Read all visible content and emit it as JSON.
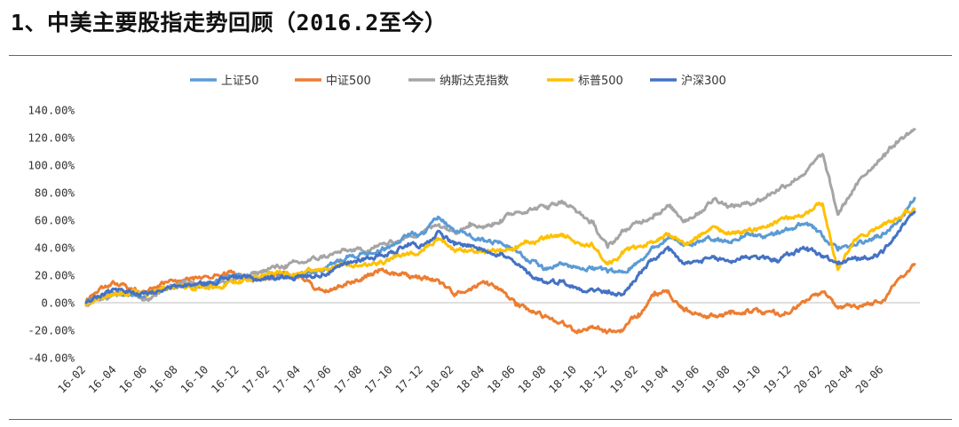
{
  "page": {
    "title": "1、中美主要股指走势回顾（2016.2至今）"
  },
  "chart_data": {
    "type": "line",
    "title": "",
    "xlabel": "",
    "ylabel": "",
    "x_tick_labels": [
      "16-02",
      "16-04",
      "16-06",
      "16-08",
      "16-10",
      "16-12",
      "17-02",
      "17-04",
      "17-06",
      "17-08",
      "17-10",
      "17-12",
      "18-02",
      "18-04",
      "18-06",
      "18-08",
      "18-10",
      "18-12",
      "19-02",
      "19-04",
      "19-06",
      "19-08",
      "19-10",
      "19-12",
      "20-02",
      "20-04",
      "20-06"
    ],
    "x_range": [
      "2016-02",
      "2020-08"
    ],
    "y_tick_labels": [
      "140.00%",
      "120.00%",
      "100.00%",
      "80.00%",
      "60.00%",
      "40.00%",
      "20.00%",
      "0.00%",
      "-20.00%",
      "-40.00%"
    ],
    "ylim": [
      -40,
      140
    ],
    "y_unit": "%",
    "grid": false,
    "legend_position": "top-center",
    "series": [
      {
        "name": "上证50",
        "color": "#5B9BD5",
        "points": [
          [
            "2016-02-01",
            0
          ],
          [
            "2016-03-01",
            5
          ],
          [
            "2016-04-01",
            8
          ],
          [
            "2016-05-01",
            5
          ],
          [
            "2016-06-01",
            6
          ],
          [
            "2016-07-01",
            9
          ],
          [
            "2016-08-01",
            12
          ],
          [
            "2016-09-01",
            13
          ],
          [
            "2016-10-01",
            14
          ],
          [
            "2016-11-01",
            18
          ],
          [
            "2016-12-01",
            20
          ],
          [
            "2017-01-01",
            17
          ],
          [
            "2017-02-01",
            18
          ],
          [
            "2017-03-01",
            19
          ],
          [
            "2017-04-01",
            20
          ],
          [
            "2017-05-01",
            22
          ],
          [
            "2017-06-01",
            28
          ],
          [
            "2017-07-01",
            34
          ],
          [
            "2017-08-01",
            36
          ],
          [
            "2017-09-01",
            38
          ],
          [
            "2017-10-01",
            42
          ],
          [
            "2017-11-01",
            50
          ],
          [
            "2017-12-01",
            50
          ],
          [
            "2018-01-01",
            62
          ],
          [
            "2018-02-01",
            52
          ],
          [
            "2018-03-01",
            50
          ],
          [
            "2018-04-01",
            45
          ],
          [
            "2018-05-01",
            44
          ],
          [
            "2018-06-01",
            38
          ],
          [
            "2018-07-01",
            30
          ],
          [
            "2018-08-01",
            24
          ],
          [
            "2018-09-01",
            28
          ],
          [
            "2018-10-01",
            26
          ],
          [
            "2018-11-01",
            26
          ],
          [
            "2018-12-01",
            22
          ],
          [
            "2019-01-01",
            22
          ],
          [
            "2019-02-01",
            30
          ],
          [
            "2019-03-01",
            40
          ],
          [
            "2019-04-01",
            48
          ],
          [
            "2019-05-01",
            42
          ],
          [
            "2019-06-01",
            45
          ],
          [
            "2019-07-01",
            46
          ],
          [
            "2019-08-01",
            44
          ],
          [
            "2019-09-01",
            50
          ],
          [
            "2019-10-01",
            48
          ],
          [
            "2019-11-01",
            50
          ],
          [
            "2019-12-01",
            54
          ],
          [
            "2020-01-01",
            58
          ],
          [
            "2020-02-01",
            48
          ],
          [
            "2020-03-01",
            38
          ],
          [
            "2020-04-01",
            42
          ],
          [
            "2020-05-01",
            45
          ],
          [
            "2020-06-01",
            50
          ],
          [
            "2020-07-01",
            60
          ],
          [
            "2020-08-01",
            76
          ]
        ]
      },
      {
        "name": "中证500",
        "color": "#ED7D31",
        "points": [
          [
            "2016-02-01",
            0
          ],
          [
            "2016-03-01",
            12
          ],
          [
            "2016-04-01",
            14
          ],
          [
            "2016-05-01",
            10
          ],
          [
            "2016-06-01",
            8
          ],
          [
            "2016-07-01",
            14
          ],
          [
            "2016-08-01",
            16
          ],
          [
            "2016-09-01",
            17
          ],
          [
            "2016-10-01",
            18
          ],
          [
            "2016-11-01",
            22
          ],
          [
            "2016-12-01",
            20
          ],
          [
            "2017-01-01",
            17
          ],
          [
            "2017-02-01",
            18
          ],
          [
            "2017-03-01",
            20
          ],
          [
            "2017-04-01",
            19
          ],
          [
            "2017-05-01",
            10
          ],
          [
            "2017-06-01",
            9
          ],
          [
            "2017-07-01",
            15
          ],
          [
            "2017-08-01",
            18
          ],
          [
            "2017-09-01",
            22
          ],
          [
            "2017-10-01",
            22
          ],
          [
            "2017-11-01",
            20
          ],
          [
            "2017-12-01",
            18
          ],
          [
            "2018-01-01",
            16
          ],
          [
            "2018-02-01",
            5
          ],
          [
            "2018-03-01",
            10
          ],
          [
            "2018-04-01",
            14
          ],
          [
            "2018-05-01",
            10
          ],
          [
            "2018-06-01",
            -2
          ],
          [
            "2018-07-01",
            -6
          ],
          [
            "2018-08-01",
            -10
          ],
          [
            "2018-09-01",
            -14
          ],
          [
            "2018-10-01",
            -22
          ],
          [
            "2018-11-01",
            -17
          ],
          [
            "2018-12-01",
            -21
          ],
          [
            "2019-01-01",
            -20
          ],
          [
            "2019-02-01",
            -8
          ],
          [
            "2019-03-01",
            5
          ],
          [
            "2019-04-01",
            7
          ],
          [
            "2019-05-01",
            -6
          ],
          [
            "2019-06-01",
            -8
          ],
          [
            "2019-07-01",
            -10
          ],
          [
            "2019-08-01",
            -8
          ],
          [
            "2019-09-01",
            -6
          ],
          [
            "2019-10-01",
            -7
          ],
          [
            "2019-11-01",
            -8
          ],
          [
            "2019-12-01",
            -6
          ],
          [
            "2020-01-01",
            2
          ],
          [
            "2020-02-01",
            8
          ],
          [
            "2020-03-01",
            -4
          ],
          [
            "2020-04-01",
            -2
          ],
          [
            "2020-05-01",
            -1
          ],
          [
            "2020-06-01",
            2
          ],
          [
            "2020-07-01",
            18
          ],
          [
            "2020-08-01",
            28
          ]
        ]
      },
      {
        "name": "纳斯达克指数",
        "color": "#A5A5A5",
        "points": [
          [
            "2016-02-01",
            -2
          ],
          [
            "2016-03-01",
            3
          ],
          [
            "2016-04-01",
            5
          ],
          [
            "2016-05-01",
            6
          ],
          [
            "2016-06-01",
            2
          ],
          [
            "2016-07-01",
            10
          ],
          [
            "2016-08-01",
            14
          ],
          [
            "2016-09-01",
            15
          ],
          [
            "2016-10-01",
            14
          ],
          [
            "2016-11-01",
            15
          ],
          [
            "2016-12-01",
            18
          ],
          [
            "2017-01-01",
            21
          ],
          [
            "2017-02-01",
            25
          ],
          [
            "2017-03-01",
            27
          ],
          [
            "2017-04-01",
            29
          ],
          [
            "2017-05-01",
            32
          ],
          [
            "2017-06-01",
            35
          ],
          [
            "2017-07-01",
            38
          ],
          [
            "2017-08-01",
            38
          ],
          [
            "2017-09-01",
            41
          ],
          [
            "2017-10-01",
            44
          ],
          [
            "2017-11-01",
            48
          ],
          [
            "2017-12-01",
            52
          ],
          [
            "2018-01-01",
            57
          ],
          [
            "2018-02-01",
            52
          ],
          [
            "2018-03-01",
            58
          ],
          [
            "2018-04-01",
            55
          ],
          [
            "2018-05-01",
            60
          ],
          [
            "2018-06-01",
            66
          ],
          [
            "2018-07-01",
            68
          ],
          [
            "2018-08-01",
            70
          ],
          [
            "2018-09-01",
            74
          ],
          [
            "2018-10-01",
            66
          ],
          [
            "2018-11-01",
            58
          ],
          [
            "2018-12-01",
            40
          ],
          [
            "2019-01-01",
            52
          ],
          [
            "2019-02-01",
            58
          ],
          [
            "2019-03-01",
            64
          ],
          [
            "2019-04-01",
            70
          ],
          [
            "2019-05-01",
            60
          ],
          [
            "2019-06-01",
            66
          ],
          [
            "2019-07-01",
            76
          ],
          [
            "2019-08-01",
            70
          ],
          [
            "2019-09-01",
            72
          ],
          [
            "2019-10-01",
            75
          ],
          [
            "2019-11-01",
            82
          ],
          [
            "2019-12-01",
            88
          ],
          [
            "2020-01-01",
            96
          ],
          [
            "2020-02-01",
            108
          ],
          [
            "2020-03-01",
            64
          ],
          [
            "2020-04-01",
            82
          ],
          [
            "2020-05-01",
            96
          ],
          [
            "2020-06-01",
            108
          ],
          [
            "2020-07-01",
            118
          ],
          [
            "2020-08-01",
            126
          ]
        ]
      },
      {
        "name": "标普500",
        "color": "#FFC000",
        "points": [
          [
            "2016-02-01",
            -1
          ],
          [
            "2016-03-01",
            4
          ],
          [
            "2016-04-01",
            6
          ],
          [
            "2016-05-01",
            7
          ],
          [
            "2016-06-01",
            5
          ],
          [
            "2016-07-01",
            11
          ],
          [
            "2016-08-01",
            12
          ],
          [
            "2016-09-01",
            11
          ],
          [
            "2016-10-01",
            10
          ],
          [
            "2016-11-01",
            13
          ],
          [
            "2016-12-01",
            16
          ],
          [
            "2017-01-01",
            18
          ],
          [
            "2017-02-01",
            21
          ],
          [
            "2017-03-01",
            22
          ],
          [
            "2017-04-01",
            22
          ],
          [
            "2017-05-01",
            24
          ],
          [
            "2017-06-01",
            25
          ],
          [
            "2017-07-01",
            27
          ],
          [
            "2017-08-01",
            27
          ],
          [
            "2017-09-01",
            29
          ],
          [
            "2017-10-01",
            32
          ],
          [
            "2017-11-01",
            35
          ],
          [
            "2017-12-01",
            38
          ],
          [
            "2018-01-01",
            46
          ],
          [
            "2018-02-01",
            38
          ],
          [
            "2018-03-01",
            38
          ],
          [
            "2018-04-01",
            36
          ],
          [
            "2018-05-01",
            39
          ],
          [
            "2018-06-01",
            41
          ],
          [
            "2018-07-01",
            44
          ],
          [
            "2018-08-01",
            47
          ],
          [
            "2018-09-01",
            50
          ],
          [
            "2018-10-01",
            44
          ],
          [
            "2018-11-01",
            42
          ],
          [
            "2018-12-01",
            28
          ],
          [
            "2019-01-01",
            36
          ],
          [
            "2019-02-01",
            41
          ],
          [
            "2019-03-01",
            44
          ],
          [
            "2019-04-01",
            50
          ],
          [
            "2019-05-01",
            42
          ],
          [
            "2019-06-01",
            48
          ],
          [
            "2019-07-01",
            55
          ],
          [
            "2019-08-01",
            50
          ],
          [
            "2019-09-01",
            52
          ],
          [
            "2019-10-01",
            54
          ],
          [
            "2019-11-01",
            58
          ],
          [
            "2019-12-01",
            62
          ],
          [
            "2020-01-01",
            66
          ],
          [
            "2020-02-01",
            72
          ],
          [
            "2020-03-01",
            24
          ],
          [
            "2020-04-01",
            44
          ],
          [
            "2020-05-01",
            50
          ],
          [
            "2020-06-01",
            58
          ],
          [
            "2020-07-01",
            62
          ],
          [
            "2020-08-01",
            68
          ]
        ]
      },
      {
        "name": "沪深300",
        "color": "#4472C4",
        "points": [
          [
            "2016-02-01",
            0
          ],
          [
            "2016-03-01",
            6
          ],
          [
            "2016-04-01",
            9
          ],
          [
            "2016-05-01",
            7
          ],
          [
            "2016-06-01",
            6
          ],
          [
            "2016-07-01",
            9
          ],
          [
            "2016-08-01",
            12
          ],
          [
            "2016-09-01",
            13
          ],
          [
            "2016-10-01",
            14
          ],
          [
            "2016-11-01",
            18
          ],
          [
            "2016-12-01",
            19
          ],
          [
            "2017-01-01",
            17
          ],
          [
            "2017-02-01",
            18
          ],
          [
            "2017-03-01",
            19
          ],
          [
            "2017-04-01",
            19
          ],
          [
            "2017-05-01",
            20
          ],
          [
            "2017-06-01",
            23
          ],
          [
            "2017-07-01",
            28
          ],
          [
            "2017-08-01",
            32
          ],
          [
            "2017-09-01",
            34
          ],
          [
            "2017-10-01",
            37
          ],
          [
            "2017-11-01",
            43
          ],
          [
            "2017-12-01",
            42
          ],
          [
            "2018-01-01",
            52
          ],
          [
            "2018-02-01",
            42
          ],
          [
            "2018-03-01",
            42
          ],
          [
            "2018-04-01",
            38
          ],
          [
            "2018-05-01",
            36
          ],
          [
            "2018-06-01",
            28
          ],
          [
            "2018-07-01",
            20
          ],
          [
            "2018-08-01",
            15
          ],
          [
            "2018-09-01",
            16
          ],
          [
            "2018-10-01",
            10
          ],
          [
            "2018-11-01",
            10
          ],
          [
            "2018-12-01",
            7
          ],
          [
            "2019-01-01",
            6
          ],
          [
            "2019-02-01",
            20
          ],
          [
            "2019-03-01",
            32
          ],
          [
            "2019-04-01",
            38
          ],
          [
            "2019-05-01",
            28
          ],
          [
            "2019-06-01",
            30
          ],
          [
            "2019-07-01",
            32
          ],
          [
            "2019-08-01",
            30
          ],
          [
            "2019-09-01",
            34
          ],
          [
            "2019-10-01",
            33
          ],
          [
            "2019-11-01",
            31
          ],
          [
            "2019-12-01",
            36
          ],
          [
            "2020-01-01",
            40
          ],
          [
            "2020-02-01",
            34
          ],
          [
            "2020-03-01",
            28
          ],
          [
            "2020-04-01",
            32
          ],
          [
            "2020-05-01",
            32
          ],
          [
            "2020-06-01",
            38
          ],
          [
            "2020-07-01",
            52
          ],
          [
            "2020-08-01",
            66
          ]
        ]
      }
    ]
  }
}
